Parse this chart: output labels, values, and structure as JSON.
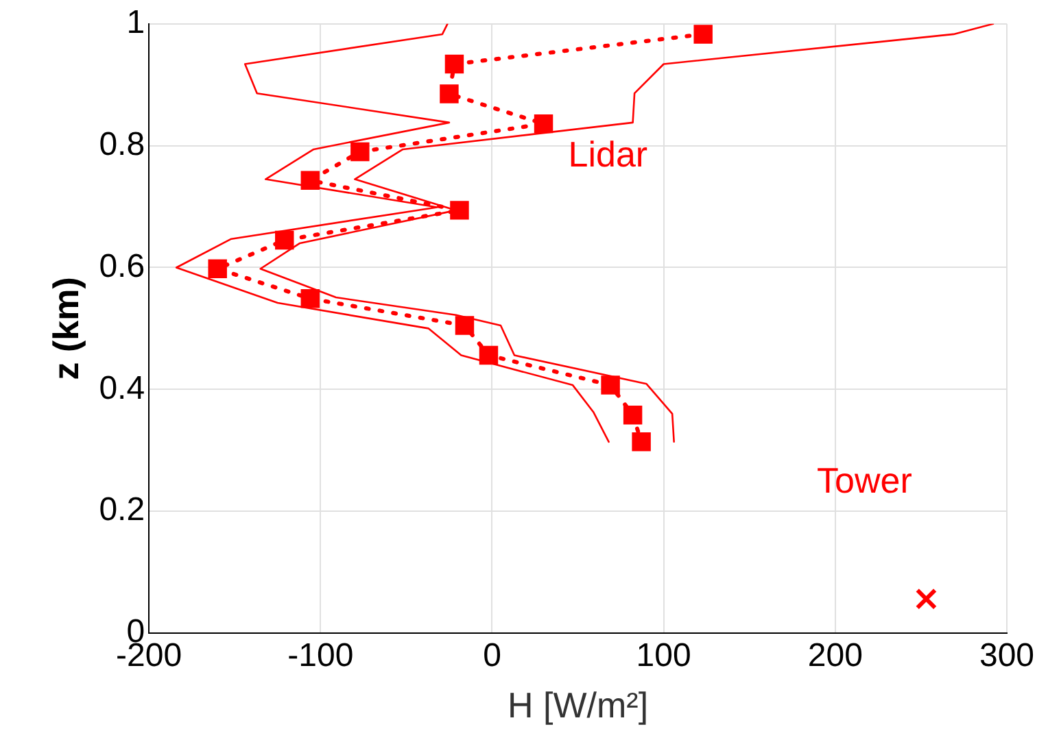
{
  "chart_data": {
    "type": "line",
    "xlabel": "H [W/m²]",
    "ylabel": "z (km)",
    "xlim": [
      -200,
      300
    ],
    "xticks": [
      -200,
      -100,
      0,
      100,
      200,
      300
    ],
    "ylim": [
      0,
      1
    ],
    "yticks": [
      0,
      0.2,
      0.4,
      0.6,
      0.8,
      1
    ],
    "grid": true,
    "legend": false,
    "series": [
      {
        "type": "line",
        "color": "#ff0000",
        "marker": "none",
        "line_style": "solid",
        "x": [
          -26,
          -29,
          -144,
          -137,
          -25,
          -104,
          -132,
          -32,
          -152,
          -184,
          -125,
          -37,
          -18,
          47,
          59,
          68
        ],
        "values": [
          1.0,
          0.983,
          0.934,
          0.886,
          0.838,
          0.794,
          0.745,
          0.699,
          0.647,
          0.6,
          0.542,
          0.5,
          0.456,
          0.407,
          0.363,
          0.314
        ]
      },
      {
        "type": "line",
        "color": "#ff0000",
        "marker": "none",
        "line_style": "solid",
        "x": [
          292,
          269,
          100,
          83,
          82,
          -52,
          -80,
          -21,
          -112,
          -135,
          -91,
          -21,
          5,
          13,
          90,
          105,
          106
        ],
        "values": [
          1.0,
          0.983,
          0.934,
          0.886,
          0.838,
          0.794,
          0.745,
          0.694,
          0.64,
          0.598,
          0.551,
          0.522,
          0.505,
          0.456,
          0.409,
          0.36,
          0.314
        ]
      },
      {
        "type": "line",
        "name": "Lidar",
        "color": "#ff0000",
        "marker": "square",
        "line_style": "dotted",
        "x": [
          123,
          -22,
          -25,
          30,
          -77,
          -106,
          -19,
          -121,
          -160,
          -106,
          -16,
          -2,
          69,
          82,
          87
        ],
        "values": [
          0.983,
          0.934,
          0.885,
          0.836,
          0.79,
          0.743,
          0.694,
          0.645,
          0.598,
          0.549,
          0.505,
          0.456,
          0.407,
          0.358,
          0.314
        ]
      },
      {
        "type": "scatter",
        "name": "Tower",
        "color": "#ff0000",
        "marker": "cross",
        "x": [
          253
        ],
        "values": [
          0.056
        ]
      }
    ]
  }
}
